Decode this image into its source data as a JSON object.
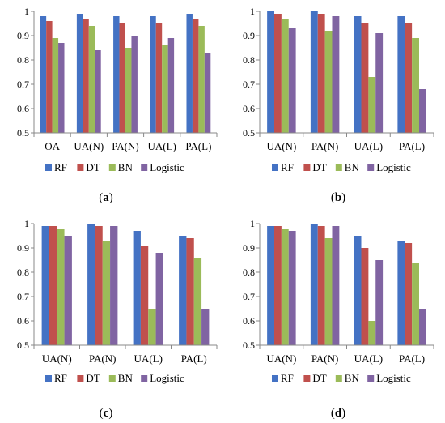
{
  "colors": {
    "RF": "#4472C4",
    "DT": "#C0504D",
    "BN": "#9BBB59",
    "Logistic": "#8064A2"
  },
  "chart_data": [
    {
      "panel_label": "a",
      "type": "bar",
      "categories": [
        "OA",
        "UA(N)",
        "PA(N)",
        "UA(L)",
        "PA(L)"
      ],
      "ylim": [
        0.5,
        1
      ],
      "yticks": [
        "0.5",
        "0.6",
        "0.7",
        "0.8",
        "0.9",
        "1"
      ],
      "grid": false,
      "legend": "bottom",
      "series": [
        {
          "name": "RF",
          "values": [
            0.98,
            0.99,
            0.98,
            0.98,
            0.99
          ]
        },
        {
          "name": "DT",
          "values": [
            0.96,
            0.97,
            0.95,
            0.95,
            0.97
          ]
        },
        {
          "name": "BN",
          "values": [
            0.89,
            0.94,
            0.85,
            0.86,
            0.94
          ]
        },
        {
          "name": "Logistic",
          "values": [
            0.87,
            0.84,
            0.9,
            0.89,
            0.83
          ]
        }
      ]
    },
    {
      "panel_label": "b",
      "type": "bar",
      "categories": [
        "UA(N)",
        "PA(N)",
        "UA(L)",
        "PA(L)"
      ],
      "ylim": [
        0.5,
        1
      ],
      "yticks": [
        "0.5",
        "0.6",
        "0.7",
        "0.8",
        "0.9",
        "1"
      ],
      "grid": false,
      "legend": "bottom",
      "series": [
        {
          "name": "RF",
          "values": [
            1.0,
            1.0,
            0.98,
            0.98
          ]
        },
        {
          "name": "DT",
          "values": [
            0.99,
            0.99,
            0.95,
            0.95
          ]
        },
        {
          "name": "BN",
          "values": [
            0.97,
            0.92,
            0.73,
            0.89
          ]
        },
        {
          "name": "Logistic",
          "values": [
            0.93,
            0.98,
            0.91,
            0.68
          ]
        }
      ]
    },
    {
      "panel_label": "c",
      "type": "bar",
      "categories": [
        "UA(N)",
        "PA(N)",
        "UA(L)",
        "PA(L)"
      ],
      "ylim": [
        0.5,
        1
      ],
      "yticks": [
        "0.5",
        "0.6",
        "0.7",
        "0.8",
        "0.9",
        "1"
      ],
      "grid": false,
      "legend": "bottom",
      "series": [
        {
          "name": "RF",
          "values": [
            0.99,
            1.0,
            0.97,
            0.95
          ]
        },
        {
          "name": "DT",
          "values": [
            0.99,
            0.99,
            0.91,
            0.94
          ]
        },
        {
          "name": "BN",
          "values": [
            0.98,
            0.93,
            0.65,
            0.86
          ]
        },
        {
          "name": "Logistic",
          "values": [
            0.95,
            0.99,
            0.88,
            0.65
          ]
        }
      ]
    },
    {
      "panel_label": "d",
      "type": "bar",
      "categories": [
        "UA(N)",
        "PA(N)",
        "UA(L)",
        "PA(L)"
      ],
      "ylim": [
        0.5,
        1
      ],
      "yticks": [
        "0.5",
        "0.6",
        "0.7",
        "0.8",
        "0.9",
        "1"
      ],
      "grid": false,
      "legend": "bottom",
      "series": [
        {
          "name": "RF",
          "values": [
            0.99,
            1.0,
            0.95,
            0.93
          ]
        },
        {
          "name": "DT",
          "values": [
            0.99,
            0.99,
            0.9,
            0.92
          ]
        },
        {
          "name": "BN",
          "values": [
            0.98,
            0.94,
            0.6,
            0.84
          ]
        },
        {
          "name": "Logistic",
          "values": [
            0.97,
            0.99,
            0.85,
            0.65
          ]
        }
      ]
    }
  ]
}
